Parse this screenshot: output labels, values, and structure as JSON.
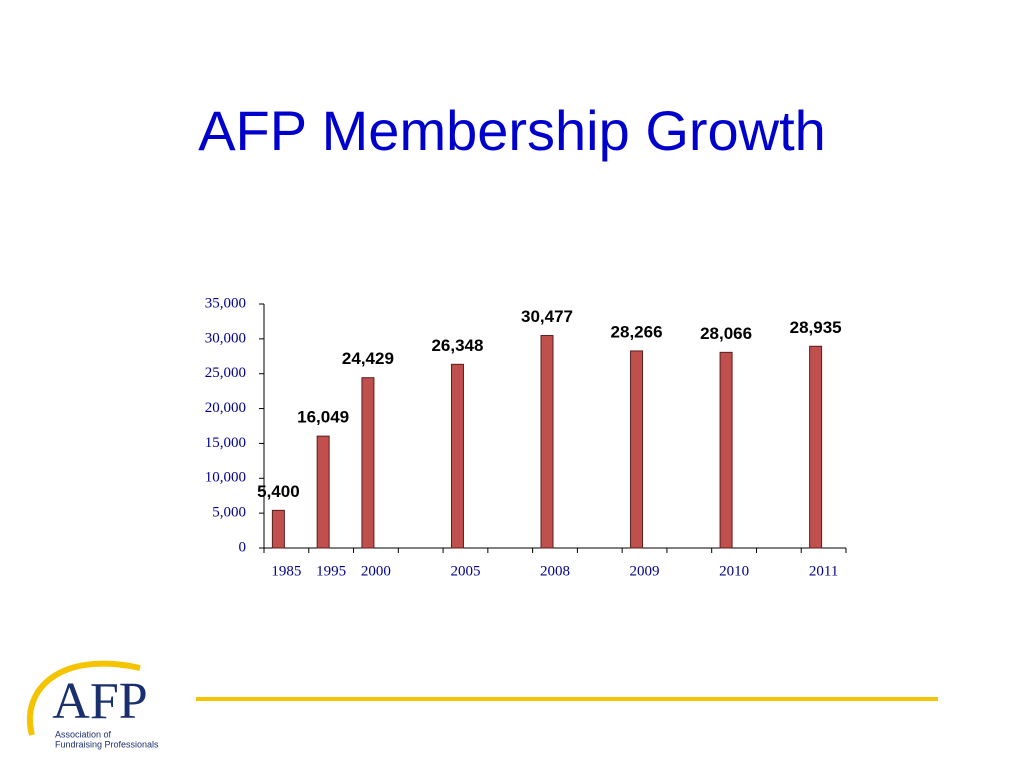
{
  "chart_data": {
    "type": "bar",
    "title": "AFP Membership Growth",
    "categories": [
      "1985",
      "1995",
      "2000",
      null,
      "2005",
      null,
      "2008",
      null,
      "2009",
      null,
      "2010",
      null,
      "2011"
    ],
    "values": [
      5400,
      16049,
      24429,
      null,
      26348,
      null,
      30477,
      null,
      28266,
      null,
      28066,
      null,
      28935
    ],
    "value_labels": [
      "5,400",
      "16,049",
      "24,429",
      null,
      "26,348",
      null,
      "30,477",
      null,
      "28,266",
      null,
      "28,066",
      null,
      "28,935"
    ],
    "color": "#c0504d",
    "ylim": [
      0,
      35000
    ],
    "yticks": [
      0,
      {
        "value": 5000,
        "label": "5,000"
      },
      {
        "value": 10000,
        "label": "10,000"
      },
      {
        "value": 15000,
        "label": "15,000"
      },
      {
        "value": 20000,
        "label": "20,000"
      },
      {
        "value": 25000,
        "label": "25,000"
      },
      {
        "value": 30000,
        "label": "30,000"
      },
      {
        "value": 35000,
        "label": "35,000"
      }
    ],
    "grid": false
  },
  "logo": {
    "mark": "AFP",
    "line1": "Association of",
    "line2": "Fundraising Professionals"
  }
}
